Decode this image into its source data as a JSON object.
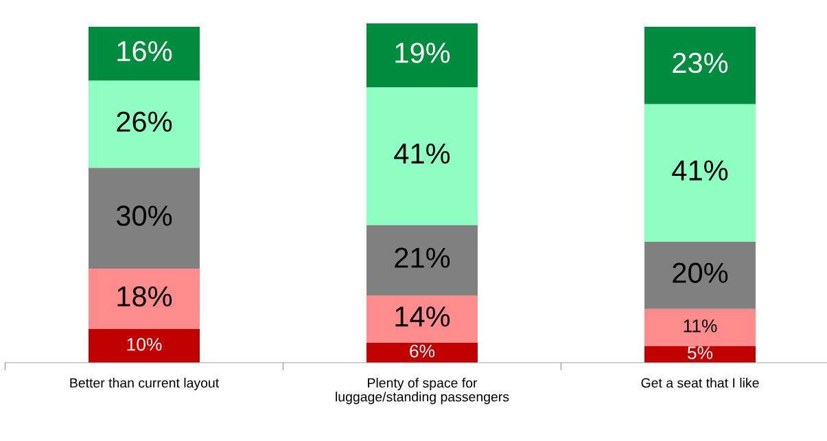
{
  "chart_data": {
    "type": "bar",
    "stacked": true,
    "grid": false,
    "legend": false,
    "categories": [
      "Better than current layout",
      "Plenty of space for\nluggage/standing passengers",
      "Get a seat that I like"
    ],
    "series": [
      {
        "color": "#c00000",
        "values": [
          10,
          6,
          5
        ],
        "value_labels": [
          "10%",
          "6%",
          "5%"
        ]
      },
      {
        "color": "#ff8c8c",
        "values": [
          18,
          14,
          11
        ],
        "value_labels": [
          "18%",
          "14%",
          "11%"
        ]
      },
      {
        "color": "#808080",
        "values": [
          30,
          21,
          20
        ],
        "value_labels": [
          "30%",
          "21%",
          "20%"
        ]
      },
      {
        "color": "#8effc0",
        "values": [
          26,
          41,
          41
        ],
        "value_labels": [
          "26%",
          "41%",
          "41%"
        ]
      },
      {
        "color": "#008c3e",
        "values": [
          16,
          19,
          23
        ],
        "value_labels": [
          "16%",
          "19%",
          "23%"
        ]
      }
    ]
  }
}
